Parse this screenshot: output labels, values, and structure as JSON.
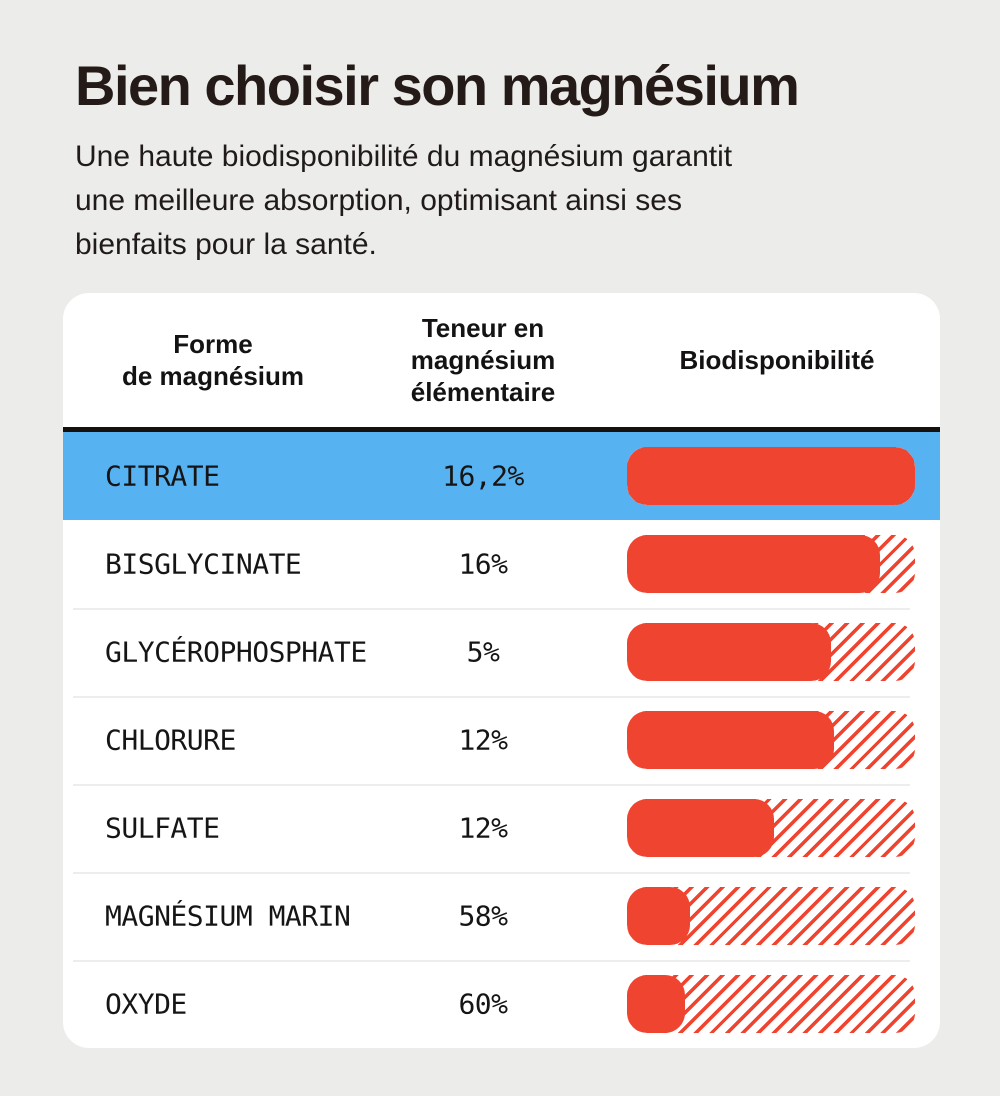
{
  "title": "Bien choisir son magnésium",
  "subtitle": {
    "line1": "Une haute biodisponibilité du magnésium garantit",
    "line2": "une meilleure absorption, optimisant ainsi ses",
    "line3": "bienfaits pour la santé."
  },
  "table": {
    "headers": {
      "col1_line1": "Forme",
      "col1_line2": "de magnésium",
      "col2_line1": "Teneur en",
      "col2_line2": "magnésium",
      "col2_line3": "élémentaire",
      "col3": "Biodisponibilité"
    }
  },
  "chart_data": {
    "type": "bar",
    "title": "Bien choisir son magnésium",
    "columns": [
      "Forme de magnésium",
      "Teneur en magnésium élémentaire",
      "Biodisponibilité"
    ],
    "rows": [
      {
        "label": "CITRATE",
        "teneur": "16,2%",
        "bar_fill_percent": 100,
        "highlighted": true
      },
      {
        "label": "BISGLYCINATE",
        "teneur": "16%",
        "bar_fill_percent": 88,
        "highlighted": false
      },
      {
        "label": "GLYCÉROPHOSPHATE",
        "teneur": "5%",
        "bar_fill_percent": 71,
        "highlighted": false
      },
      {
        "label": "CHLORURE",
        "teneur": "12%",
        "bar_fill_percent": 72,
        "highlighted": false
      },
      {
        "label": "SULFATE",
        "teneur": "12%",
        "bar_fill_percent": 51,
        "highlighted": false
      },
      {
        "label": "MAGNÉSIUM MARIN",
        "teneur": "58%",
        "bar_fill_percent": 22,
        "highlighted": false
      },
      {
        "label": "OXYDE",
        "teneur": "60%",
        "bar_fill_percent": 20,
        "highlighted": false
      }
    ],
    "legend": "solid = biodisponibilité atteinte, hachuré = reste de la barre",
    "bar_style_note": "rounded bars, solid fill over diagonal-hatch track"
  },
  "colors": {
    "page_background": "#ECECEA",
    "card_background": "#FFFFFF",
    "highlight_row_blue": "#57B2F2",
    "bar_red": "#EE4430",
    "header_divider_black": "#17110E",
    "row_separator_gray": "#EDEDED",
    "text_dark": "#201B1A"
  }
}
